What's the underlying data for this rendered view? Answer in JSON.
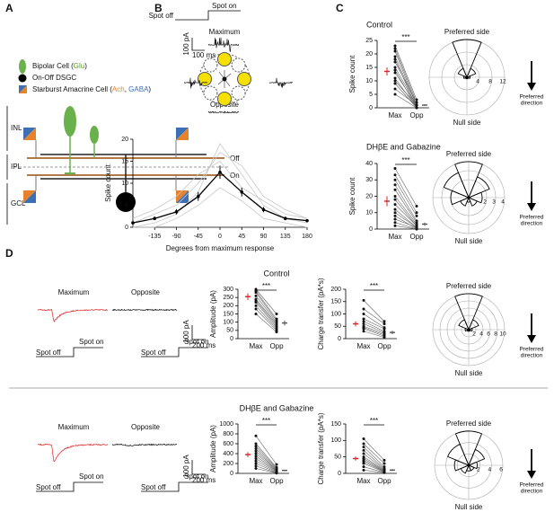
{
  "figure": {
    "panels": [
      "A",
      "B",
      "C",
      "D"
    ],
    "legend": [
      [
        {
          "t": "Bipolar Cell ("
        },
        {
          "t": "Glu",
          "color": "#5aa02c"
        },
        {
          "t": ")"
        }
      ],
      [
        {
          "t": "On-Off DSGC"
        }
      ],
      [
        {
          "t": "Starburst Amacrine Cell ("
        },
        {
          "t": "Ach",
          "color": "#e8822a"
        },
        {
          "t": ", "
        },
        {
          "t": "GABA",
          "color": "#3b6fb6"
        },
        {
          "t": ")"
        }
      ]
    ],
    "layers": [
      "INL",
      "IPL",
      "GCL"
    ],
    "sublayers": [
      "Off",
      "On"
    ],
    "b_stimulus": {
      "on": "Spot on",
      "off": "Spot off"
    },
    "b_labels": [
      "Maximum",
      "Opposite"
    ],
    "b_scale": [
      "100 pA",
      "100 ms"
    ],
    "c_headings": [
      "Control",
      "DHβE and Gabazine"
    ],
    "d_rows": [
      {
        "heading": "Control",
        "max": "Maximum",
        "opp": "Opposite",
        "on": "Spot on",
        "off": "Spot off",
        "scale": [
          "100 pA",
          "200 ms"
        ]
      },
      {
        "heading": "DHβE and Gabazine",
        "max": "Maximum",
        "opp": "Opposite",
        "on": "Spot on",
        "off": "Spot off",
        "scale": [
          "100 pA",
          "200 ms"
        ]
      }
    ]
  },
  "chart_data": [
    {
      "type": "line",
      "xlabel": "Degrees from maximum response",
      "ylabel": "Spike count",
      "x": [
        -180,
        -135,
        -90,
        -45,
        0,
        45,
        90,
        135,
        180
      ],
      "values": [
        1,
        2,
        3.5,
        7,
        12.5,
        8,
        4,
        2,
        1.5
      ],
      "errors": [
        0.3,
        0.4,
        0.6,
        1,
        1.5,
        1,
        0.6,
        0.4,
        0.3
      ],
      "color": "#000000",
      "cells": [
        [
          0,
          1,
          3,
          8,
          19,
          12,
          5,
          2,
          1
        ],
        [
          2,
          4,
          7,
          12,
          15,
          9,
          6,
          3,
          2
        ],
        [
          0,
          0,
          2,
          5,
          9,
          6,
          2,
          1,
          0
        ],
        [
          1,
          3,
          5,
          10,
          17,
          14,
          7,
          4,
          2
        ]
      ],
      "cell_color": "#c8c8c8",
      "xlim": [
        -180,
        180
      ],
      "xticks": [
        -135,
        -90,
        -45,
        0,
        45,
        90,
        135,
        180
      ],
      "ylim": [
        0,
        20
      ],
      "yticks": [
        0,
        5,
        10,
        15,
        20
      ]
    },
    {
      "type": "paired",
      "ylabel": "Spike count",
      "categories": [
        "Max",
        "Opp"
      ],
      "category_colors": [
        "#e02020",
        "#000000"
      ],
      "annotation": "***",
      "paired": [
        [
          23,
          3
        ],
        [
          22,
          2
        ],
        [
          21,
          1
        ],
        [
          19,
          1
        ],
        [
          18,
          0
        ],
        [
          17,
          2
        ],
        [
          15,
          1
        ],
        [
          14,
          0
        ],
        [
          13,
          1
        ],
        [
          11,
          0
        ],
        [
          10,
          1
        ],
        [
          9,
          0
        ],
        [
          7,
          1
        ],
        [
          5,
          0
        ]
      ],
      "means": [
        13.5,
        1
      ],
      "errors": [
        1.5,
        0.3
      ],
      "ylim": [
        0,
        25
      ],
      "yticks": [
        0,
        5,
        10,
        15,
        20,
        25
      ]
    },
    {
      "type": "polar",
      "top_label": "Preferred side",
      "bottom_label": "Null side",
      "arrow_label": [
        "Preferred",
        "direction"
      ],
      "values": [
        12,
        3,
        1,
        0.5,
        0.5,
        0.5,
        1,
        3
      ],
      "rlim": [
        0,
        12
      ],
      "rticks": [
        4,
        8,
        12
      ]
    },
    {
      "type": "paired",
      "ylabel": "Spike count",
      "categories": [
        "Max",
        "Opp"
      ],
      "category_colors": [
        "#e02020",
        "#000000"
      ],
      "annotation": "***",
      "paired": [
        [
          37,
          14
        ],
        [
          33,
          10
        ],
        [
          30,
          8
        ],
        [
          27,
          5
        ],
        [
          24,
          4
        ],
        [
          20,
          3
        ],
        [
          18,
          2
        ],
        [
          15,
          2
        ],
        [
          12,
          1
        ],
        [
          10,
          1
        ],
        [
          8,
          0
        ],
        [
          6,
          1
        ],
        [
          4,
          0
        ],
        [
          2,
          0
        ]
      ],
      "means": [
        17,
        3
      ],
      "errors": [
        3,
        1
      ],
      "ylim": [
        0,
        40
      ],
      "yticks": [
        0,
        10,
        20,
        30,
        40
      ]
    },
    {
      "type": "polar",
      "top_label": "Preferred side",
      "bottom_label": "Null side",
      "arrow_label": [
        "Preferred",
        "direction"
      ],
      "values": [
        4,
        2.5,
        1.5,
        1,
        0.5,
        1,
        2,
        3
      ],
      "rlim": [
        0,
        4
      ],
      "rticks": [
        2,
        3,
        4
      ]
    },
    {
      "type": "paired",
      "ylabel": "Amplitude (pA)",
      "categories": [
        "Max",
        "Opp"
      ],
      "category_colors": [
        "#e02020",
        "#000000"
      ],
      "annotation": "***",
      "paired": [
        [
          300,
          150
        ],
        [
          290,
          120
        ],
        [
          280,
          110
        ],
        [
          260,
          100
        ],
        [
          240,
          90
        ],
        [
          230,
          80
        ],
        [
          220,
          70
        ],
        [
          200,
          60
        ],
        [
          180,
          50
        ],
        [
          150,
          40
        ]
      ],
      "means": [
        255,
        95
      ],
      "errors": [
        20,
        15
      ],
      "ylim": [
        0,
        300
      ],
      "yticks": [
        0,
        50,
        100,
        150,
        200,
        250,
        300
      ]
    },
    {
      "type": "paired",
      "ylabel": "Charge transfer (pA*s)",
      "categories": [
        "Max",
        "Opp"
      ],
      "category_colors": [
        "#e02020",
        "#000000"
      ],
      "annotation": "***",
      "paired": [
        [
          155,
          70
        ],
        [
          120,
          60
        ],
        [
          100,
          45
        ],
        [
          80,
          40
        ],
        [
          70,
          30
        ],
        [
          60,
          25
        ],
        [
          50,
          20
        ],
        [
          45,
          15
        ],
        [
          40,
          10
        ],
        [
          30,
          5
        ]
      ],
      "means": [
        60,
        25
      ],
      "errors": [
        10,
        7
      ],
      "ylim": [
        0,
        200
      ],
      "yticks": [
        0,
        50,
        100,
        150,
        200
      ]
    },
    {
      "type": "polar",
      "top_label": "Preferred side",
      "bottom_label": "Null side",
      "arrow_label": [
        "Preferred",
        "direction"
      ],
      "values": [
        10,
        3,
        1,
        0.5,
        0.3,
        0.5,
        1,
        3
      ],
      "rlim": [
        0,
        10
      ],
      "rticks": [
        2,
        4,
        6,
        8,
        10
      ]
    },
    {
      "type": "paired",
      "ylabel": "Amplitude (pA)",
      "categories": [
        "Max",
        "Opp"
      ],
      "category_colors": [
        "#e02020",
        "#000000"
      ],
      "annotation": "***",
      "paired": [
        [
          760,
          180
        ],
        [
          600,
          120
        ],
        [
          550,
          100
        ],
        [
          500,
          80
        ],
        [
          450,
          70
        ],
        [
          400,
          60
        ],
        [
          350,
          50
        ],
        [
          300,
          40
        ],
        [
          250,
          30
        ],
        [
          200,
          20
        ],
        [
          150,
          10
        ],
        [
          100,
          5
        ]
      ],
      "means": [
        380,
        60
      ],
      "errors": [
        50,
        15
      ],
      "ylim": [
        0,
        1000
      ],
      "yticks": [
        0,
        200,
        400,
        600,
        800,
        1000
      ]
    },
    {
      "type": "paired",
      "ylabel": "Charge transfer (pA*s)",
      "categories": [
        "Max",
        "Opp"
      ],
      "category_colors": [
        "#e02020",
        "#000000"
      ],
      "annotation": "***",
      "paired": [
        [
          105,
          40
        ],
        [
          90,
          30
        ],
        [
          80,
          20
        ],
        [
          70,
          15
        ],
        [
          60,
          12
        ],
        [
          50,
          10
        ],
        [
          45,
          8
        ],
        [
          40,
          6
        ],
        [
          35,
          5
        ],
        [
          30,
          4
        ],
        [
          20,
          3
        ],
        [
          10,
          2
        ]
      ],
      "means": [
        45,
        10
      ],
      "errors": [
        6,
        3
      ],
      "ylim": [
        0,
        150
      ],
      "yticks": [
        0,
        50,
        100,
        150
      ]
    },
    {
      "type": "polar",
      "top_label": "Preferred side",
      "bottom_label": "Null side",
      "arrow_label": [
        "Preferred",
        "direction"
      ],
      "values": [
        6,
        3,
        1.5,
        1,
        1,
        1.5,
        2.5,
        4
      ],
      "rlim": [
        0,
        6
      ],
      "rticks": [
        2,
        4,
        6
      ]
    }
  ]
}
